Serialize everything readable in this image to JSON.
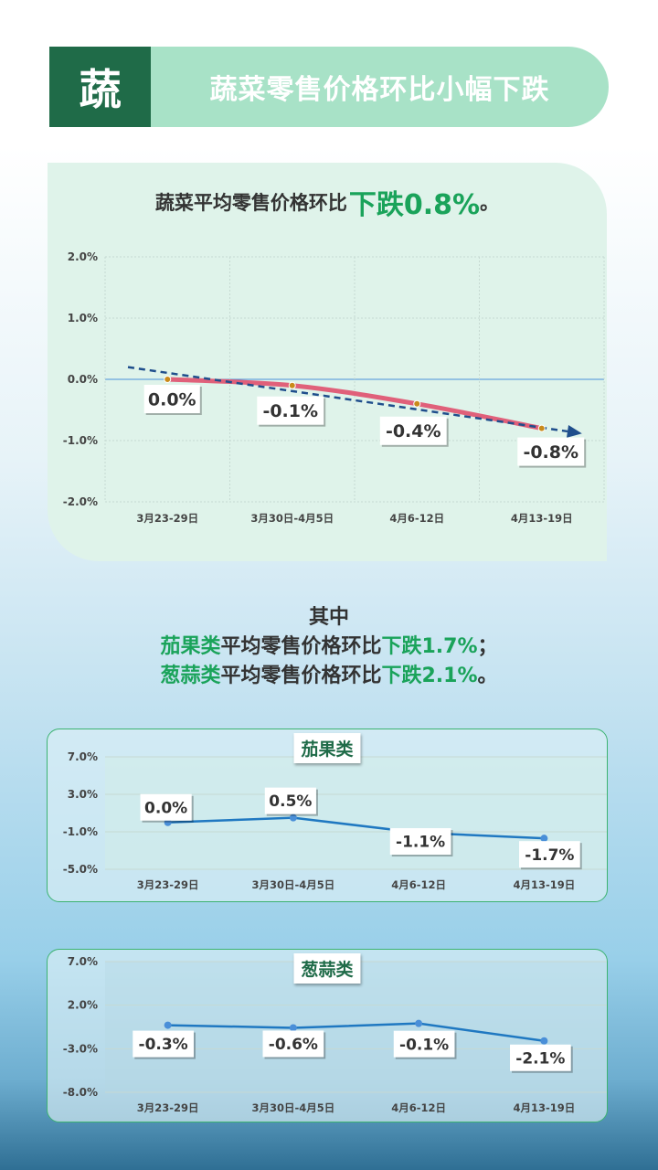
{
  "header": {
    "badge": "蔬",
    "title": "蔬菜零售价格环比小幅下跌"
  },
  "main_summary": {
    "prefix": "蔬菜平均零售价格环比",
    "highlight": "下跌0.8%",
    "suffix": "。"
  },
  "sub_summary": {
    "intro": "其中",
    "line1": {
      "category": "茄果类",
      "middle": "平均零售价格环比",
      "highlight": "下跌1.7%",
      "suffix": "；"
    },
    "line2": {
      "category": "葱蒜类",
      "middle": "平均零售价格环比",
      "highlight": "下跌2.1%",
      "suffix": "。"
    }
  },
  "colors": {
    "accent_green": "#1aa35a",
    "badge_dark_green": "#1f6b48",
    "main_line": "#e0607a",
    "trend_line": "#1f4e8c",
    "small_line": "#1f78c1"
  },
  "chart_data": [
    {
      "type": "line",
      "categories": [
        "3月23-29日",
        "3月30日-4月5日",
        "4月6-12日",
        "4月13-19日"
      ],
      "series": [
        {
          "values": [
            0.0,
            -0.1,
            -0.4,
            -0.8
          ],
          "labels": [
            "0.0%",
            "-0.1%",
            "-0.4%",
            "-0.8%"
          ]
        }
      ],
      "trendline": {
        "from": 0.2,
        "to": -0.85
      },
      "ylim": [
        -2.0,
        2.0
      ],
      "yticks": [
        2.0,
        1.0,
        0.0,
        -1.0,
        -2.0
      ],
      "ytick_labels": [
        "2.0%",
        "1.0%",
        "0.0%",
        "-1.0%",
        "-2.0%"
      ],
      "grid": true
    },
    {
      "type": "line",
      "title": "茄果类",
      "categories": [
        "3月23-29日",
        "3月30日-4月5日",
        "4月6-12日",
        "4月13-19日"
      ],
      "series": [
        {
          "values": [
            0.0,
            0.5,
            -1.1,
            -1.7
          ],
          "labels": [
            "0.0%",
            "0.5%",
            "-1.1%",
            "-1.7%"
          ]
        }
      ],
      "ylim": [
        -5.0,
        7.0
      ],
      "yticks": [
        7.0,
        3.0,
        -1.0,
        -5.0
      ],
      "ytick_labels": [
        "7.0%",
        "3.0%",
        "-1.0%",
        "-5.0%"
      ],
      "grid": true
    },
    {
      "type": "line",
      "title": "葱蒜类",
      "categories": [
        "3月23-29日",
        "3月30日-4月5日",
        "4月6-12日",
        "4月13-19日"
      ],
      "series": [
        {
          "values": [
            -0.3,
            -0.6,
            -0.1,
            -2.1
          ],
          "labels": [
            "-0.3%",
            "-0.6%",
            "-0.1%",
            "-2.1%"
          ]
        }
      ],
      "ylim": [
        -8.0,
        7.0
      ],
      "yticks": [
        7.0,
        2.0,
        -3.0,
        -8.0
      ],
      "ytick_labels": [
        "7.0%",
        "2.0%",
        "-3.0%",
        "-8.0%"
      ],
      "grid": true
    }
  ]
}
